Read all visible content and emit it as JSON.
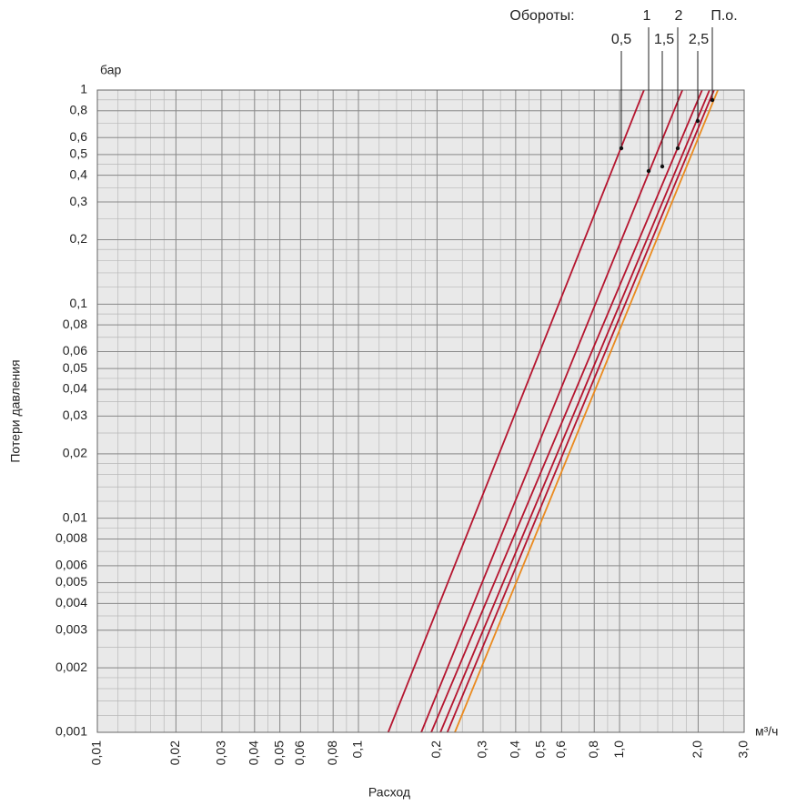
{
  "chart_data": {
    "type": "line",
    "x_label": "Расход",
    "y_label": "Потери давления",
    "y_unit": "бар",
    "x_unit": "м³/ч",
    "legend_title": "Обороты:",
    "xlog": true,
    "ylog": true,
    "grid": true,
    "xlim": [
      0.01,
      3
    ],
    "ylim": [
      0.001,
      1
    ],
    "xticks": [
      {
        "value": 0.01,
        "label": "0,01"
      },
      {
        "value": 0.02,
        "label": "0,02"
      },
      {
        "value": 0.03,
        "label": "0,03"
      },
      {
        "value": 0.04,
        "label": "0,04"
      },
      {
        "value": 0.05,
        "label": "0,05"
      },
      {
        "value": 0.06,
        "label": "0,06"
      },
      {
        "value": 0.08,
        "label": "0,08"
      },
      {
        "value": 0.1,
        "label": "0,1"
      },
      {
        "value": 0.2,
        "label": "0,2"
      },
      {
        "value": 0.3,
        "label": "0,3"
      },
      {
        "value": 0.4,
        "label": "0,4"
      },
      {
        "value": 0.5,
        "label": "0,5"
      },
      {
        "value": 0.6,
        "label": "0,6"
      },
      {
        "value": 0.8,
        "label": "0,8"
      },
      {
        "value": 1,
        "label": "1,0"
      },
      {
        "value": 2,
        "label": "2,0"
      },
      {
        "value": 3,
        "label": "3,0"
      }
    ],
    "yticks": [
      1,
      {
        "value": 0.8,
        "label": "0,8"
      },
      {
        "value": 0.6,
        "label": "0,6"
      },
      {
        "value": 0.5,
        "label": "0,5"
      },
      {
        "value": 0.4,
        "label": "0,4"
      },
      {
        "value": 0.3,
        "label": "0,3"
      },
      {
        "value": 0.2,
        "label": "0,2"
      },
      {
        "value": 0.1,
        "label": "0,1"
      },
      {
        "value": 0.08,
        "label": "0,08"
      },
      {
        "value": 0.06,
        "label": "0,06"
      },
      {
        "value": 0.05,
        "label": "0,05"
      },
      {
        "value": 0.04,
        "label": "0,04"
      },
      {
        "value": 0.03,
        "label": "0,03"
      },
      {
        "value": 0.02,
        "label": "0,02"
      },
      {
        "value": 0.01,
        "label": "0,01"
      },
      {
        "value": 0.008,
        "label": "0,008"
      },
      {
        "value": 0.006,
        "label": "0,006"
      },
      {
        "value": 0.005,
        "label": "0,005"
      },
      {
        "value": 0.004,
        "label": "0,004"
      },
      {
        "value": 0.003,
        "label": "0,003"
      },
      {
        "value": 0.002,
        "label": "0,002"
      },
      {
        "value": 0.001,
        "label": "0,001"
      }
    ],
    "series": [
      {
        "name": "0,5",
        "color": "#b5152f",
        "x": [
          0.13,
          1.24
        ],
        "values": [
          0.001,
          1
        ]
      },
      {
        "name": "1",
        "color": "#b5152f",
        "x": [
          0.174,
          1.74
        ],
        "values": [
          0.001,
          1
        ]
      },
      {
        "name": "1,5",
        "color": "#b5152f",
        "x": [
          0.19,
          2.07
        ],
        "values": [
          0.001,
          1
        ]
      },
      {
        "name": "2",
        "color": "#b5152f",
        "x": [
          0.206,
          2.21
        ],
        "values": [
          0.001,
          1
        ]
      },
      {
        "name": "2,5",
        "color": "#b5152f",
        "x": [
          0.219,
          2.3
        ],
        "values": [
          0.001,
          1
        ]
      },
      {
        "name": "П.о.",
        "color": "#ea8a1f",
        "x": [
          0.234,
          2.38
        ],
        "values": [
          0.001,
          1
        ]
      }
    ]
  }
}
